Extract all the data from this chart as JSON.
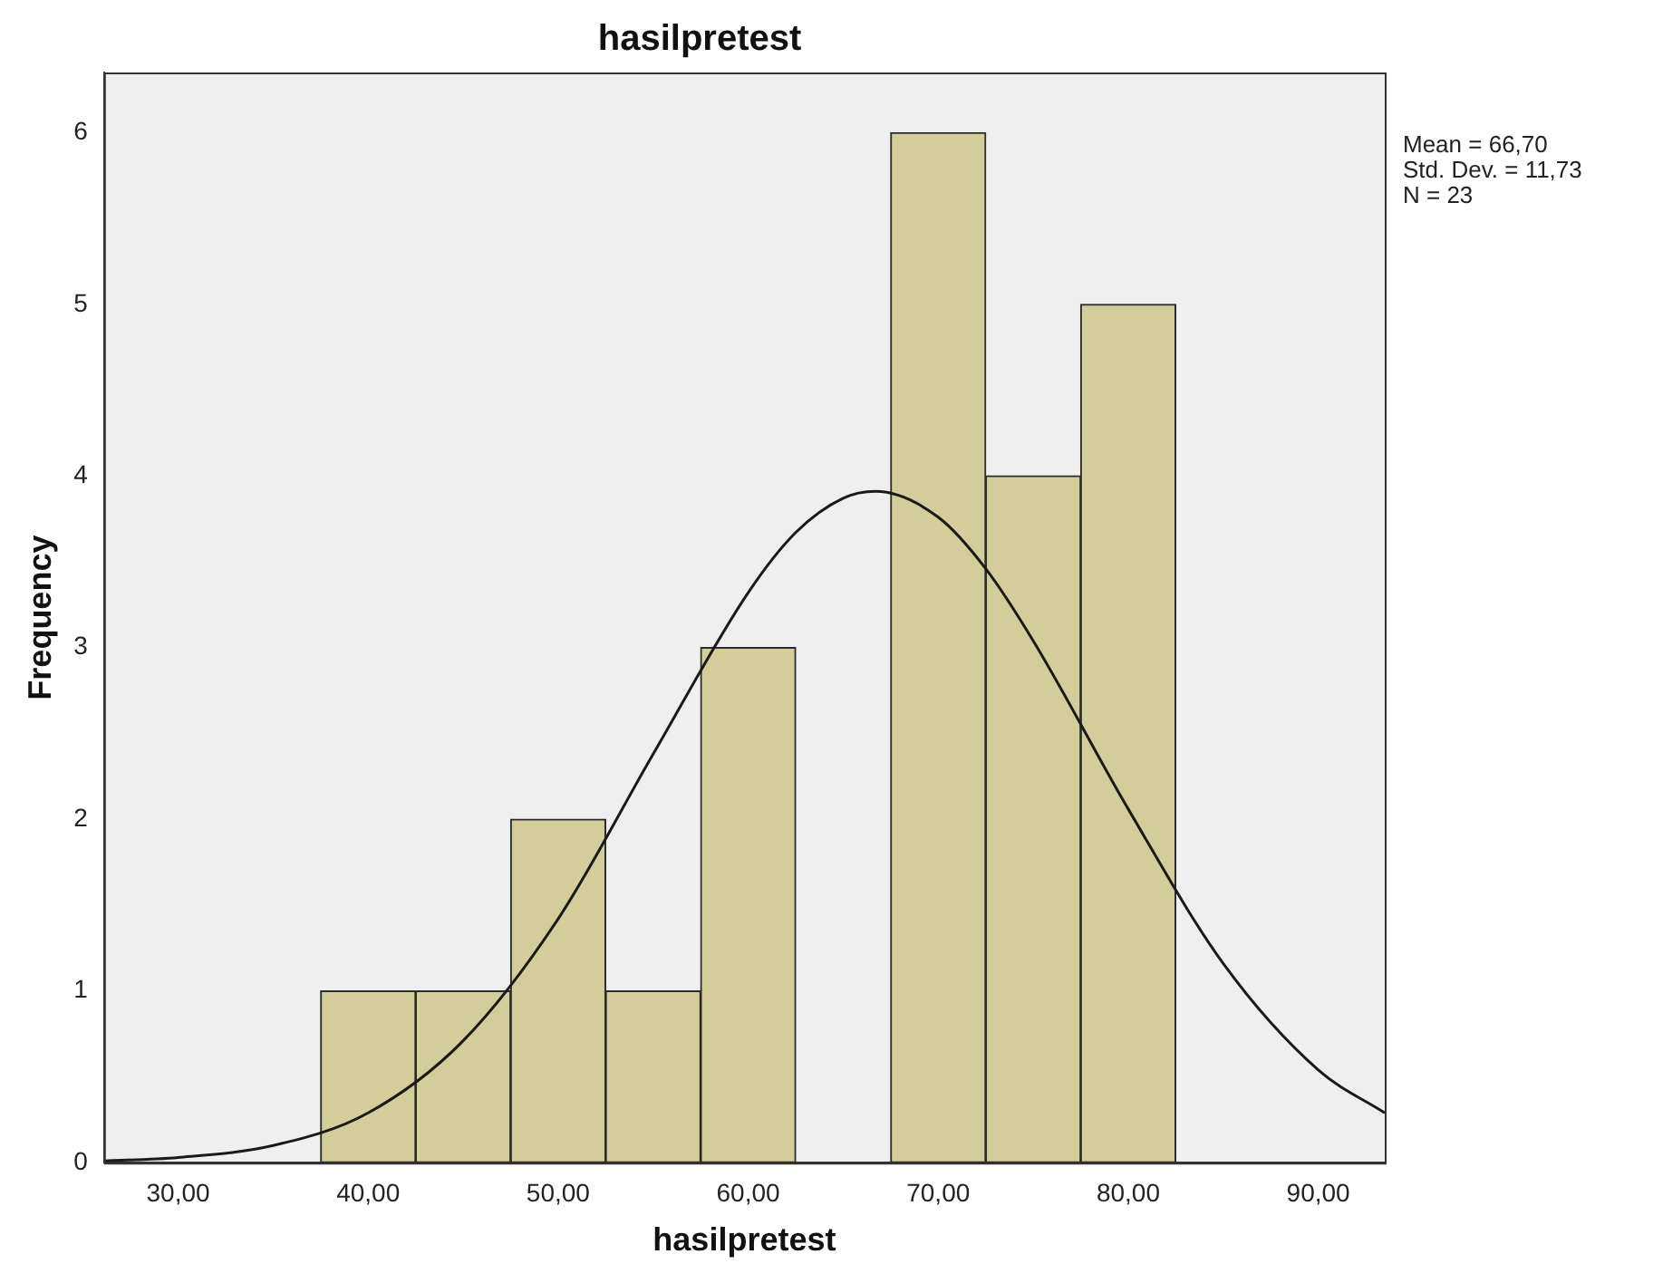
{
  "chart_data": {
    "type": "histogram",
    "title": "hasilpretest",
    "xlabel": "hasilpretest",
    "ylabel": "Frequency",
    "bins": [
      37.5,
      42.5,
      47.5,
      52.5,
      57.5,
      62.5,
      67.5,
      72.5,
      77.5,
      82.5
    ],
    "values": [
      1,
      1,
      2,
      1,
      3,
      0,
      6,
      4,
      5
    ],
    "color": "#d3ce99",
    "series": [
      {
        "type": "line",
        "color": "#1a1a1a",
        "x": [
          26.1,
          30,
          35,
          40,
          45,
          50,
          55,
          60,
          62.5,
          65,
          66.7,
          70,
          72.5,
          75,
          80,
          85,
          90,
          93.5
        ],
        "values": [
          0.01,
          0.03,
          0.1,
          0.29,
          0.71,
          1.42,
          2.38,
          3.32,
          3.67,
          3.87,
          3.91,
          3.76,
          3.46,
          3.04,
          2.06,
          1.16,
          0.54,
          0.29
        ]
      }
    ],
    "xlim": [
      26.1,
      93.5
    ],
    "xticks": [
      {
        "value": 30,
        "label": "30,00"
      },
      {
        "value": 40,
        "label": "40,00"
      },
      {
        "value": 50,
        "label": "50,00"
      },
      {
        "value": 60,
        "label": "60,00"
      },
      {
        "value": 70,
        "label": "70,00"
      },
      {
        "value": 80,
        "label": "80,00"
      },
      {
        "value": 90,
        "label": "90,00"
      }
    ],
    "ylim": [
      0,
      6.35
    ],
    "yticks": [
      0,
      1,
      2,
      3,
      4,
      5,
      6
    ],
    "legend": false,
    "annotations": [
      "Mean = 66,70",
      "Std. Dev. = 11,73",
      "N = 23"
    ]
  }
}
